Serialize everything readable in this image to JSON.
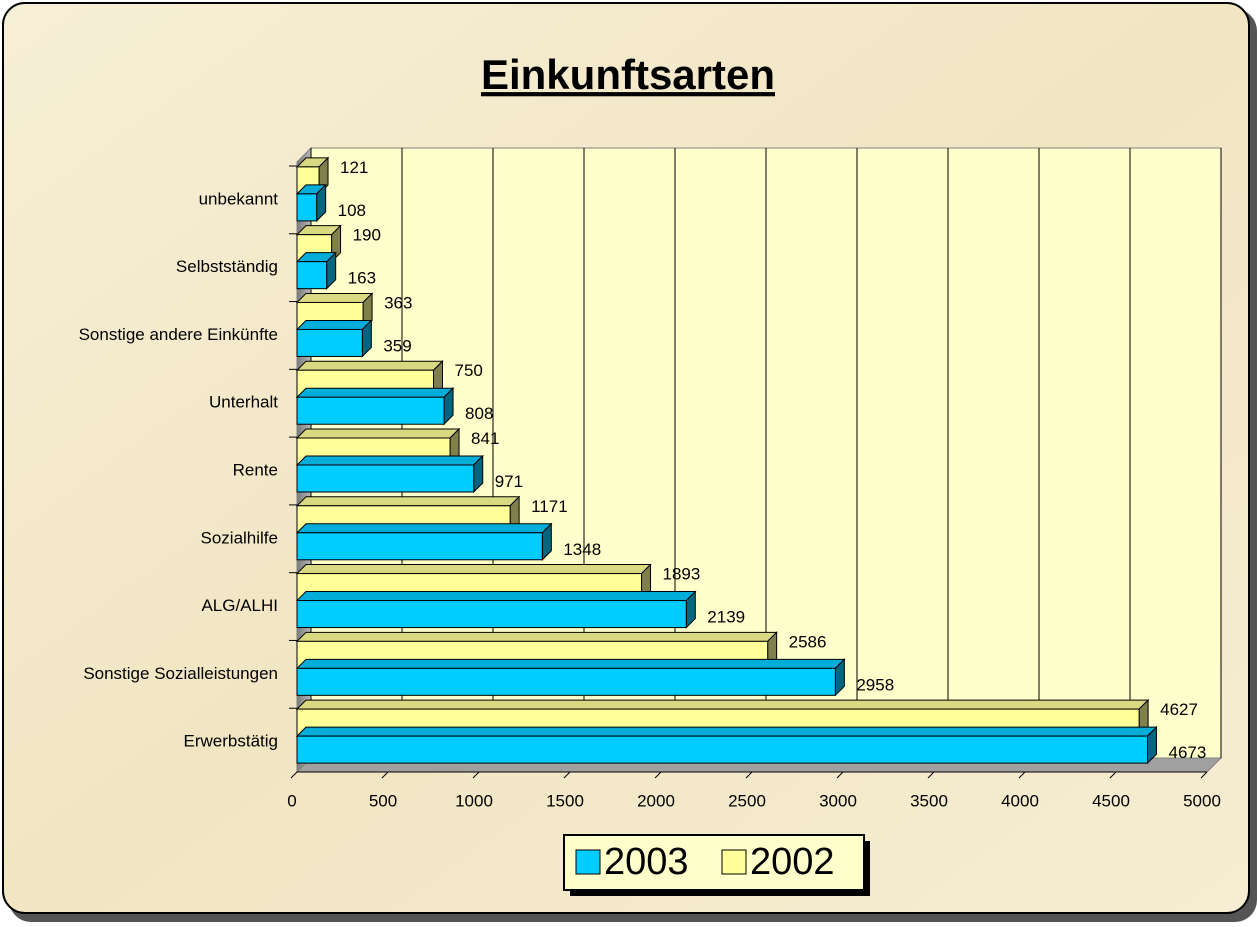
{
  "chart_data": {
    "type": "bar",
    "orientation": "horizontal",
    "title": "Einkunftsarten",
    "categories": [
      "unbekannt",
      "Selbstständig",
      "Sonstige andere Einkünfte",
      "Unterhalt",
      "Rente",
      "Sozialhilfe",
      "ALG/ALHI",
      "Sonstige Sozialleistungen",
      "Erwerbstätig"
    ],
    "series": [
      {
        "name": "2003",
        "color": "#00ccff",
        "values": [
          108,
          163,
          359,
          808,
          971,
          1348,
          2139,
          2958,
          4673
        ]
      },
      {
        "name": "2002",
        "color": "#ffff99",
        "values": [
          121,
          190,
          363,
          750,
          841,
          1171,
          1893,
          2586,
          4627
        ]
      }
    ],
    "xlim": [
      0,
      5000
    ],
    "xticks": [
      0,
      500,
      1000,
      1500,
      2000,
      2500,
      3000,
      3500,
      4000,
      4500,
      5000
    ],
    "grid": true,
    "legend": "bottom"
  }
}
